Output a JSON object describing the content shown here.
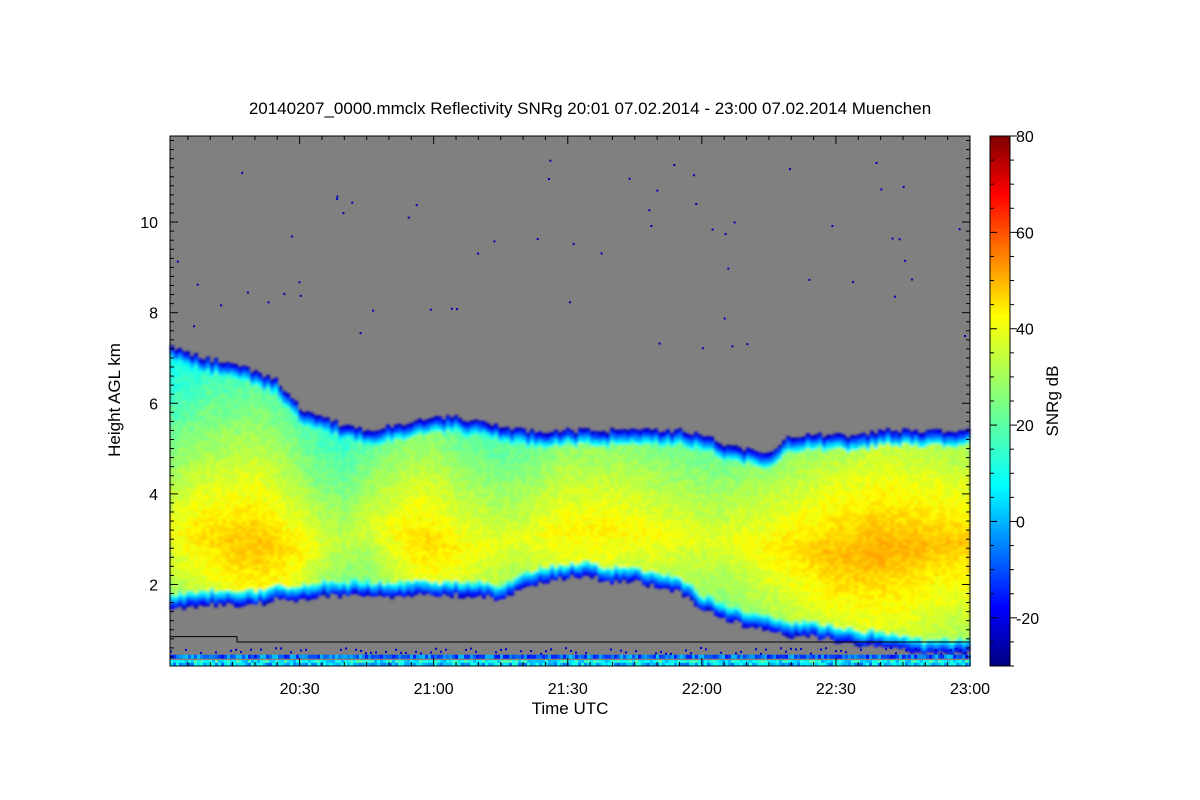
{
  "chart_data": {
    "type": "heatmap",
    "title": "20140207_0000.mmclx Reflectivity SNRg   20:01 07.02.2014 - 23:00 07.02.2014 Muenchen",
    "xlabel": "Time UTC",
    "ylabel": "Height AGL km",
    "x_ticks": [
      "20:30",
      "21:00",
      "21:30",
      "22:00",
      "22:30",
      "23:00"
    ],
    "x_tick_minutes": [
      30,
      60,
      90,
      120,
      150,
      180
    ],
    "x_range_minutes": [
      1,
      180
    ],
    "y_ticks": [
      2,
      4,
      6,
      8,
      10
    ],
    "ylim": [
      0.2,
      11.9
    ],
    "colorbar": {
      "label": "SNRg dB",
      "ticks": [
        -20,
        0,
        20,
        40,
        60,
        80
      ],
      "range": [
        -30,
        80
      ]
    },
    "background_color": "#808080",
    "echo_profile": {
      "time_minutes": [
        1,
        8,
        15,
        20,
        25,
        30,
        35,
        40,
        45,
        50,
        55,
        60,
        65,
        70,
        75,
        80,
        85,
        90,
        95,
        100,
        105,
        110,
        115,
        120,
        125,
        130,
        135,
        140,
        145,
        150,
        155,
        160,
        165,
        170,
        175,
        180
      ],
      "echo_top_km": [
        7.3,
        7.0,
        6.9,
        6.7,
        6.5,
        5.9,
        5.7,
        5.5,
        5.4,
        5.5,
        5.6,
        5.7,
        5.7,
        5.6,
        5.5,
        5.4,
        5.4,
        5.4,
        5.4,
        5.4,
        5.4,
        5.4,
        5.4,
        5.3,
        5.1,
        5.0,
        4.9,
        5.3,
        5.3,
        5.3,
        5.3,
        5.4,
        5.4,
        5.4,
        5.4,
        5.4
      ],
      "echo_base_km": [
        1.5,
        1.6,
        1.6,
        1.6,
        1.7,
        1.7,
        1.8,
        1.8,
        1.8,
        1.8,
        1.8,
        1.8,
        1.8,
        1.8,
        1.7,
        2.0,
        2.1,
        2.2,
        2.2,
        2.1,
        2.1,
        2.0,
        1.9,
        1.5,
        1.3,
        1.1,
        1.0,
        0.9,
        0.9,
        0.8,
        0.7,
        0.7,
        0.6,
        0.5,
        0.5,
        0.5
      ],
      "core_height_km": [
        3.2,
        3.1,
        2.9,
        2.9,
        2.8,
        2.8,
        2.9,
        3.0,
        3.3,
        3.2,
        3.0,
        2.9,
        2.8,
        2.8,
        2.9,
        3.0,
        3.1,
        3.2,
        3.2,
        3.2,
        3.2,
        3.1,
        3.1,
        3.0,
        3.0,
        2.9,
        2.8,
        2.8,
        2.7,
        2.7,
        2.7,
        2.8,
        2.8,
        2.9,
        2.9,
        2.9
      ],
      "core_snr_db": [
        38,
        42,
        45,
        46,
        44,
        40,
        35,
        32,
        34,
        38,
        42,
        43,
        40,
        38,
        36,
        36,
        38,
        40,
        40,
        40,
        39,
        38,
        37,
        36,
        36,
        38,
        40,
        42,
        44,
        46,
        47,
        48,
        47,
        46,
        45,
        44
      ]
    }
  }
}
